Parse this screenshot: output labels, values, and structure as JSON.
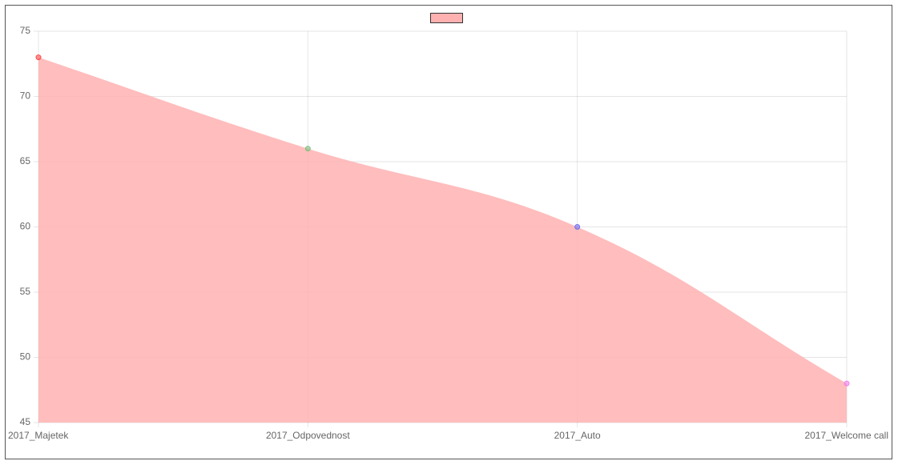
{
  "chart_data": {
    "type": "area",
    "categories": [
      "2017_Majetek",
      "2017_Odpovednost",
      "2017_Auto",
      "2017_Welcome call"
    ],
    "series": [
      {
        "color": "#ffb1b1",
        "values": [
          73,
          66,
          60,
          48
        ],
        "point_colors": [
          "#ff4d4d",
          "#7fbf7f",
          "#7070f0",
          "#f080f0"
        ]
      }
    ],
    "ylim": [
      45,
      75
    ],
    "yticks": [
      45,
      50,
      55,
      60,
      65,
      70,
      75
    ],
    "grid": true,
    "legend": "top"
  }
}
